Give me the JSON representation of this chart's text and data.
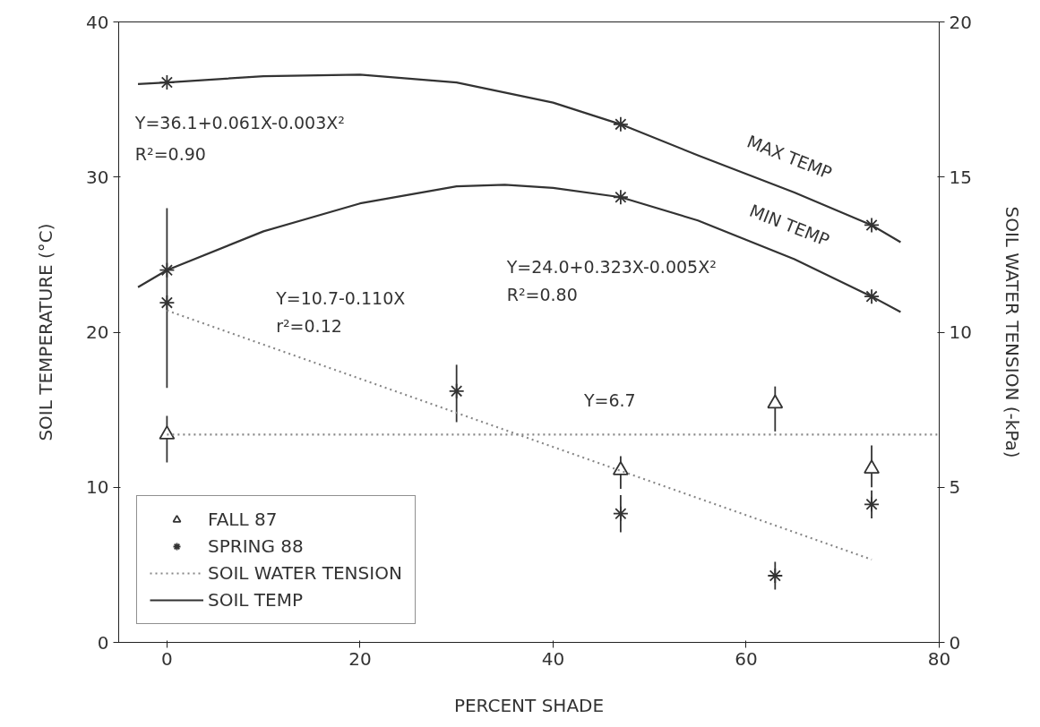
{
  "chart_data": {
    "type": "scatter",
    "xlabel": "PERCENT SHADE",
    "ylabel": "SOIL TEMPERATURE (°C)",
    "y2label": "SOIL WATER TENSION (-kPa)",
    "xlim": [
      -5,
      80
    ],
    "xticks": [
      0,
      20,
      40,
      60,
      80
    ],
    "ylim": [
      0,
      40
    ],
    "yticks": [
      0,
      10,
      20,
      30,
      40
    ],
    "y2lim": [
      0,
      20
    ],
    "y2ticks": [
      0,
      5,
      10,
      15,
      20
    ],
    "grid": false,
    "legend": "bottom left",
    "series": [
      {
        "name": "FALL 87",
        "marker": "triangle",
        "axis": "y2",
        "color": "#333333",
        "x": [
          0,
          47,
          63,
          73
        ],
        "values": [
          6.7,
          5.55,
          7.7,
          5.6
        ],
        "errors": [
          [
            5.8,
            7.3
          ],
          [
            4.95,
            6.0
          ],
          [
            6.8,
            8.25
          ],
          [
            5.0,
            6.35
          ]
        ]
      },
      {
        "name": "SPRING 88",
        "marker": "cross",
        "axis": "y2",
        "color": "#333333",
        "x": [
          0,
          30,
          47,
          63,
          73
        ],
        "values": [
          10.95,
          8.1,
          4.15,
          2.15,
          4.45
        ],
        "errors": [
          [
            8.2,
            14.0
          ],
          [
            7.1,
            8.95
          ],
          [
            3.55,
            4.75
          ],
          [
            1.7,
            2.6
          ],
          [
            4.0,
            4.9
          ]
        ]
      },
      {
        "name": "SOIL WATER TENSION",
        "type": "line",
        "axis": "y2",
        "line_style": "dotted",
        "color": "#888888",
        "x": [
          0,
          73
        ],
        "values": [
          10.7,
          2.67
        ]
      },
      {
        "type": "line",
        "axis": "y2",
        "line_style": "dotted",
        "color": "#888888",
        "x": [
          0,
          80
        ],
        "values": [
          6.7,
          6.7
        ]
      },
      {
        "name": "SOIL TEMP",
        "type": "line",
        "line_style": "solid",
        "color": "#333333",
        "x": [
          -3,
          0,
          10,
          20,
          30,
          40,
          47,
          55,
          65,
          73,
          76
        ],
        "values": [
          36.0,
          36.1,
          36.5,
          36.6,
          36.1,
          34.8,
          33.4,
          31.4,
          29.0,
          26.9,
          25.8
        ]
      },
      {
        "type": "line",
        "line_style": "solid",
        "color": "#333333",
        "x": [
          -3,
          0,
          10,
          20,
          30,
          35,
          40,
          47,
          55,
          65,
          73,
          76
        ],
        "values": [
          22.9,
          24.0,
          26.5,
          28.3,
          29.4,
          29.5,
          29.3,
          28.7,
          27.2,
          24.7,
          22.3,
          21.3
        ]
      },
      {
        "marker": "cross",
        "color": "#333333",
        "x": [
          0,
          0,
          47,
          47,
          73,
          73
        ],
        "values": [
          36.1,
          24.0,
          33.4,
          28.7,
          26.9,
          22.3
        ]
      }
    ],
    "annotations": [
      "Y=36.1+0.061X-0.003X²",
      "R²=0.90",
      "Y=24.0+0.323X-0.005X²",
      "R²=0.80",
      "Y=10.7-0.110X",
      "r²=0.12",
      "Y=6.7",
      "MAX TEMP",
      "MIN TEMP"
    ]
  }
}
